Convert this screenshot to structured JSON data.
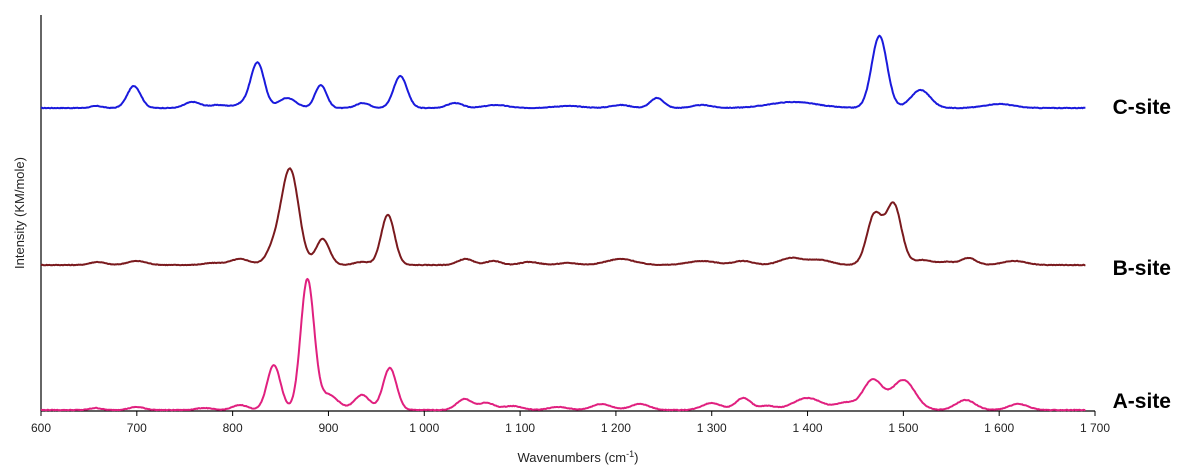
{
  "chart_data": {
    "type": "line",
    "title": "",
    "xlabel": "Wavenumbers (cm",
    "xlabel_sup": "-1",
    "xlabel_close": ")",
    "ylabel": "Intensity (KM/mole)",
    "xlim": [
      600,
      1700
    ],
    "x_ticks": [
      600,
      700,
      800,
      900,
      1000,
      1100,
      1200,
      1300,
      1400,
      1500,
      1600,
      1700
    ],
    "x_tick_labels": [
      "600",
      "700",
      "800",
      "900",
      "1 000",
      "1 100",
      "1 200",
      "1 300",
      "1 400",
      "1 500",
      "1 600",
      "1 700"
    ],
    "grid": false,
    "series": [
      {
        "name": "C-site",
        "color": "#1a1adc",
        "offset": 2,
        "peaks": [
          [
            658,
            0.02,
            6
          ],
          [
            697,
            0.22,
            7
          ],
          [
            758,
            0.06,
            8
          ],
          [
            785,
            0.03,
            10
          ],
          [
            811,
            0.04,
            8
          ],
          [
            826,
            0.45,
            7
          ],
          [
            857,
            0.1,
            9
          ],
          [
            892,
            0.23,
            6
          ],
          [
            936,
            0.05,
            7
          ],
          [
            975,
            0.32,
            7
          ],
          [
            1032,
            0.05,
            8
          ],
          [
            1075,
            0.03,
            12
          ],
          [
            1150,
            0.02,
            15
          ],
          [
            1205,
            0.03,
            10
          ],
          [
            1243,
            0.1,
            7
          ],
          [
            1290,
            0.03,
            10
          ],
          [
            1385,
            0.06,
            25
          ],
          [
            1475,
            0.72,
            8
          ],
          [
            1518,
            0.18,
            10
          ],
          [
            1600,
            0.04,
            15
          ]
        ]
      },
      {
        "name": "B-site",
        "color": "#7a1a1e",
        "offset": 1,
        "peaks": [
          [
            659,
            0.03,
            8
          ],
          [
            700,
            0.04,
            10
          ],
          [
            780,
            0.02,
            10
          ],
          [
            808,
            0.06,
            10
          ],
          [
            843,
            0.15,
            8
          ],
          [
            860,
            0.95,
            9
          ],
          [
            894,
            0.26,
            7
          ],
          [
            935,
            0.03,
            8
          ],
          [
            962,
            0.5,
            7
          ],
          [
            1043,
            0.06,
            8
          ],
          [
            1072,
            0.04,
            8
          ],
          [
            1110,
            0.03,
            10
          ],
          [
            1150,
            0.02,
            10
          ],
          [
            1205,
            0.06,
            15
          ],
          [
            1290,
            0.04,
            15
          ],
          [
            1333,
            0.04,
            10
          ],
          [
            1383,
            0.07,
            12
          ],
          [
            1413,
            0.05,
            12
          ],
          [
            1470,
            0.5,
            8
          ],
          [
            1490,
            0.6,
            8
          ],
          [
            1520,
            0.05,
            10
          ],
          [
            1545,
            0.03,
            8
          ],
          [
            1568,
            0.07,
            8
          ],
          [
            1616,
            0.04,
            12
          ]
        ]
      },
      {
        "name": "A-site",
        "color": "#e0207f",
        "offset": 0,
        "peaks": [
          [
            657,
            0.02,
            6
          ],
          [
            700,
            0.03,
            8
          ],
          [
            770,
            0.02,
            8
          ],
          [
            808,
            0.05,
            8
          ],
          [
            843,
            0.45,
            7
          ],
          [
            878,
            1.3,
            7
          ],
          [
            900,
            0.15,
            10
          ],
          [
            935,
            0.15,
            8
          ],
          [
            964,
            0.42,
            7
          ],
          [
            1042,
            0.11,
            8
          ],
          [
            1065,
            0.07,
            8
          ],
          [
            1092,
            0.04,
            10
          ],
          [
            1140,
            0.03,
            10
          ],
          [
            1185,
            0.06,
            10
          ],
          [
            1225,
            0.06,
            10
          ],
          [
            1300,
            0.07,
            10
          ],
          [
            1333,
            0.12,
            8
          ],
          [
            1358,
            0.04,
            8
          ],
          [
            1400,
            0.12,
            15
          ],
          [
            1440,
            0.07,
            10
          ],
          [
            1468,
            0.3,
            10
          ],
          [
            1500,
            0.3,
            12
          ],
          [
            1565,
            0.1,
            10
          ],
          [
            1620,
            0.06,
            10
          ]
        ]
      }
    ]
  }
}
